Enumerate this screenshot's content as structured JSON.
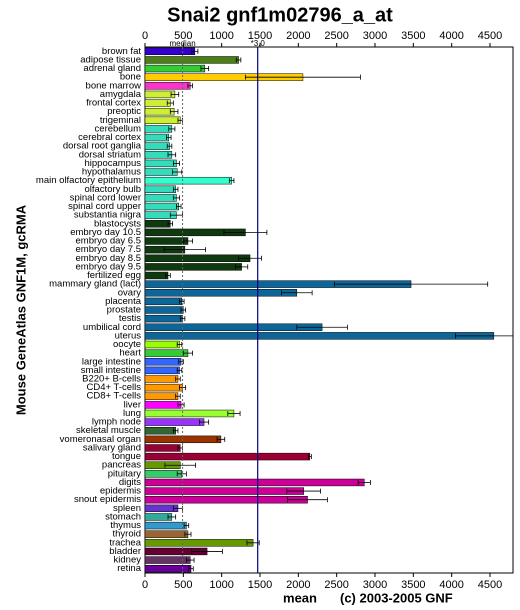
{
  "chart_data": {
    "type": "bar",
    "orientation": "horizontal",
    "title": "Snai2 gnf1m02796_a_at",
    "y_label": "Mouse GeneAtlas GNF1M, gcRMA",
    "x_label": "mean",
    "footer": "(c) 2003-2005 GNF",
    "categories": [
      "brown fat",
      "adipose tissue",
      "adrenal gland",
      "bone",
      "bone marrow",
      "amygdala",
      "frontal cortex",
      "preoptic",
      "trigeminal",
      "cerebellum",
      "cerebral cortex",
      "dorsal root ganglia",
      "dorsal striatum",
      "hippocampus",
      "hypothalamus",
      "main olfactory epithelium",
      "olfactory bulb",
      "spinal cord lower",
      "spinal cord upper",
      "substantia nigra",
      "blastocysts",
      "embryo day 10.5",
      "embryo day 6.5",
      "embryo day 7.5",
      "embryo day 8.5",
      "embryo day 9.5",
      "fertilized egg",
      "mammary gland (lact)",
      "ovary",
      "placenta",
      "prostate",
      "testis",
      "umbilical cord",
      "uterus",
      "oocyte",
      "heart",
      "large intestine",
      "small intestine",
      "B220+ B-cells",
      "CD4+ T-cells",
      "CD8+ T-cells",
      "liver",
      "lung",
      "lymph node",
      "skeletal muscle",
      "vomeronasal organ",
      "salivary gland",
      "tongue",
      "pancreas",
      "pituitary",
      "digits",
      "epidermis",
      "snout epidermis",
      "spleen",
      "stomach",
      "thymus",
      "thyroid",
      "trachea",
      "bladder",
      "kidney",
      "retina"
    ],
    "values": [
      650,
      1220,
      780,
      2060,
      590,
      390,
      330,
      380,
      460,
      350,
      310,
      320,
      350,
      410,
      420,
      1130,
      400,
      410,
      440,
      410,
      330,
      1310,
      560,
      520,
      1370,
      1260,
      300,
      3470,
      1980,
      480,
      500,
      490,
      2310,
      4550,
      450,
      560,
      470,
      450,
      430,
      490,
      430,
      470,
      1160,
      770,
      400,
      990,
      460,
      2150,
      460,
      480,
      2860,
      2070,
      2120,
      430,
      350,
      540,
      560,
      1410,
      810,
      590,
      600
    ],
    "errors": [
      40,
      30,
      50,
      750,
      30,
      50,
      40,
      50,
      30,
      40,
      30,
      30,
      50,
      40,
      60,
      30,
      30,
      40,
      30,
      80,
      30,
      280,
      60,
      270,
      150,
      80,
      30,
      1000,
      200,
      30,
      30,
      30,
      330,
      500,
      30,
      60,
      30,
      30,
      30,
      40,
      30,
      40,
      80,
      60,
      30,
      50,
      30,
      20,
      200,
      60,
      80,
      220,
      260,
      60,
      50,
      30,
      40,
      80,
      200,
      50,
      30
    ],
    "colors": [
      "#3300cc",
      "#4d7f17",
      "#33cc33",
      "#ffcc00",
      "#ff33cc",
      "#ccee33",
      "#ccee33",
      "#ccee33",
      "#ccee33",
      "#33ddbb",
      "#33ddbb",
      "#33ddbb",
      "#33ddbb",
      "#33ddbb",
      "#33ddbb",
      "#33ffcc",
      "#33ddbb",
      "#33ddbb",
      "#33ddbb",
      "#33ddbb",
      "#0f3a0f",
      "#0f3a0f",
      "#0f3a0f",
      "#0f3a0f",
      "#0f3a0f",
      "#0f3a0f",
      "#0f3a0f",
      "#0d6699",
      "#0d6699",
      "#0d6699",
      "#0d6699",
      "#0d6699",
      "#0d6699",
      "#0d6699",
      "#99ff00",
      "#33cc33",
      "#3366ff",
      "#3366ff",
      "#ff9900",
      "#ff9900",
      "#ff9900",
      "#ff00ff",
      "#99ff33",
      "#9933ff",
      "#336633",
      "#993300",
      "#990033",
      "#990033",
      "#669900",
      "#33cc66",
      "#cc0099",
      "#cc0099",
      "#cc0099",
      "#6633cc",
      "#33aa99",
      "#3399cc",
      "#996633",
      "#669900",
      "#660033",
      "#663366",
      "#660099"
    ],
    "xlim": [
      0,
      4800
    ],
    "xticks": [
      0,
      500,
      1000,
      1500,
      2000,
      2500,
      3000,
      3500,
      4000,
      4500
    ],
    "reference_lines": [
      {
        "label": "median",
        "value": 490
      },
      {
        "label": "*3.0",
        "value": 1470
      }
    ]
  }
}
